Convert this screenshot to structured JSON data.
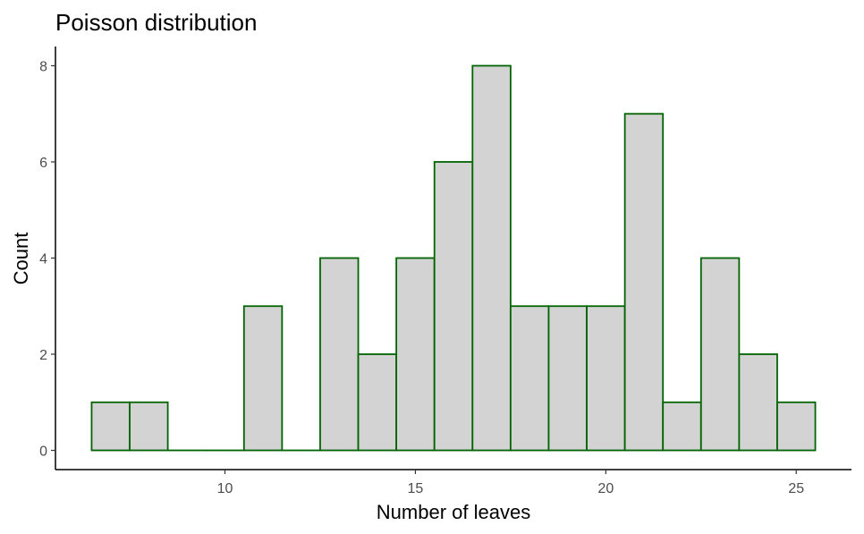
{
  "chart_data": {
    "type": "bar",
    "title": "Poisson distribution",
    "xlabel": "Number of leaves",
    "ylabel": "Count",
    "bin_width": 1,
    "x": [
      7,
      8,
      9,
      10,
      11,
      12,
      13,
      14,
      15,
      16,
      17,
      18,
      19,
      20,
      21,
      22,
      23,
      24,
      25
    ],
    "values": [
      1,
      1,
      0,
      0,
      3,
      0,
      4,
      2,
      4,
      6,
      8,
      3,
      3,
      3,
      7,
      1,
      4,
      2,
      1
    ],
    "xlim": [
      5.55,
      26.45
    ],
    "ylim": [
      -0.4,
      8.4
    ],
    "xticks": [
      10,
      15,
      20,
      25
    ],
    "yticks": [
      0,
      2,
      4,
      6,
      8
    ],
    "grid": false,
    "legend": "none",
    "colors": {
      "bar_fill": "#D3D3D3",
      "bar_outline": "#006400",
      "axis": "#000000",
      "tick_text": "#4D4D4D"
    }
  }
}
